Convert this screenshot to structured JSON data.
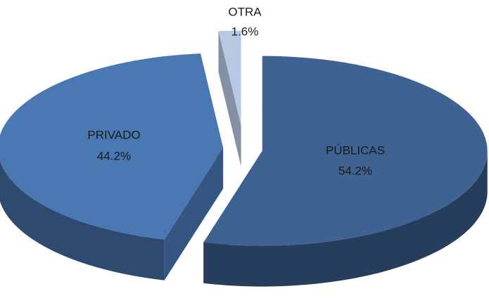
{
  "chart_data": {
    "type": "pie",
    "categories": [
      "PÚBLICAS",
      "PRIVADO",
      "OTRA"
    ],
    "values": [
      54.2,
      44.2,
      1.6
    ],
    "value_labels": [
      "54.2%",
      "44.2%",
      "1.6%"
    ],
    "colors": [
      "#3e6393",
      "#4a78b2",
      "#b7c8e2"
    ]
  }
}
